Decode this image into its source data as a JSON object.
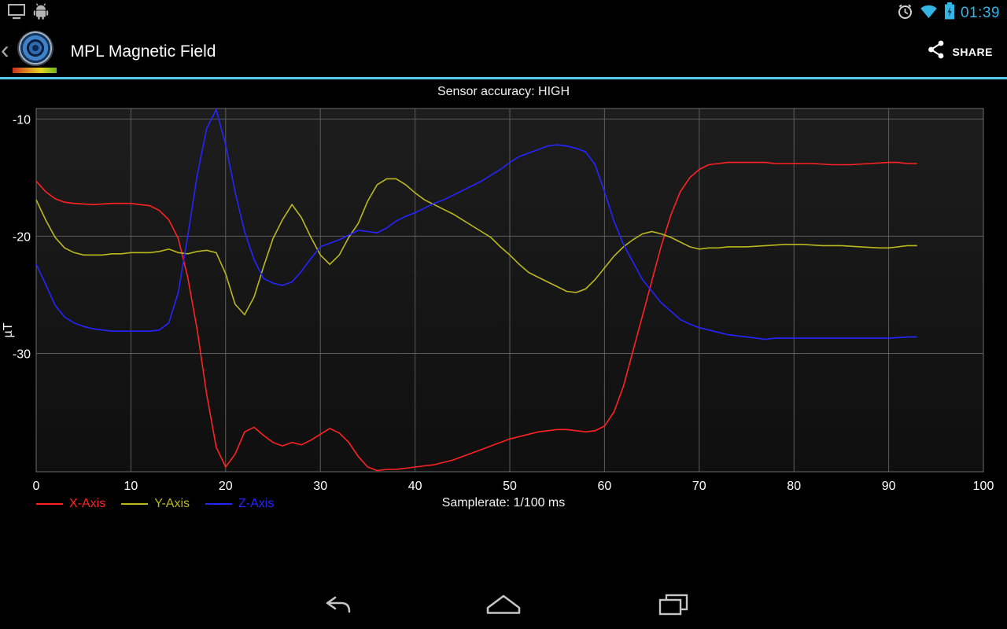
{
  "status_bar": {
    "time": "01:39",
    "accent_color": "#33B5E5",
    "left_icons": [
      "display-icon",
      "android-debug-icon"
    ],
    "right_icons": [
      "alarm-icon",
      "wifi-icon",
      "battery-charging-icon"
    ]
  },
  "action_bar": {
    "back_glyph": "‹",
    "title": "MPL Magnetic Field",
    "share_label": "SHARE",
    "divider_color": "#54c8ec"
  },
  "chart": {
    "accuracy_label": "Sensor accuracy: HIGH",
    "samplerate_label": "Samplerate: 1/100 ms"
  },
  "chart_data": {
    "type": "line",
    "title": "",
    "xlabel": "Samplerate: 1/100 ms",
    "ylabel": "µT",
    "xlim": [
      0,
      100
    ],
    "ylim": [
      -40.1,
      -9.1
    ],
    "x_ticks": [
      0,
      10,
      20,
      30,
      40,
      50,
      60,
      70,
      80,
      90,
      100
    ],
    "y_ticks": [
      -10,
      -20,
      -30
    ],
    "grid": true,
    "legend_position": "bottom-left",
    "series": [
      {
        "name": "X-Axis",
        "color": "#ff2222",
        "points": [
          [
            0,
            -15.3
          ],
          [
            1,
            -16.2
          ],
          [
            2,
            -16.8
          ],
          [
            3,
            -17.1
          ],
          [
            4,
            -17.2
          ],
          [
            6,
            -17.3
          ],
          [
            8,
            -17.2
          ],
          [
            10,
            -17.2
          ],
          [
            12,
            -17.4
          ],
          [
            13,
            -17.8
          ],
          [
            14,
            -18.6
          ],
          [
            15,
            -20.2
          ],
          [
            16,
            -23.5
          ],
          [
            17,
            -28
          ],
          [
            18,
            -33.5
          ],
          [
            19,
            -38
          ],
          [
            20,
            -39.7
          ],
          [
            21,
            -38.6
          ],
          [
            22,
            -36.7
          ],
          [
            23,
            -36.3
          ],
          [
            24,
            -37
          ],
          [
            25,
            -37.6
          ],
          [
            26,
            -37.9
          ],
          [
            27,
            -37.6
          ],
          [
            28,
            -37.8
          ],
          [
            29,
            -37.4
          ],
          [
            30,
            -36.9
          ],
          [
            31,
            -36.4
          ],
          [
            32,
            -36.8
          ],
          [
            33,
            -37.6
          ],
          [
            34,
            -38.8
          ],
          [
            35,
            -39.7
          ],
          [
            36,
            -40
          ],
          [
            37,
            -39.9
          ],
          [
            38,
            -39.9
          ],
          [
            39,
            -39.8
          ],
          [
            40,
            -39.7
          ],
          [
            41,
            -39.6
          ],
          [
            42,
            -39.5
          ],
          [
            43,
            -39.3
          ],
          [
            44,
            -39.1
          ],
          [
            45,
            -38.8
          ],
          [
            46,
            -38.5
          ],
          [
            47,
            -38.2
          ],
          [
            48,
            -37.9
          ],
          [
            49,
            -37.6
          ],
          [
            50,
            -37.3
          ],
          [
            51,
            -37.1
          ],
          [
            52,
            -36.9
          ],
          [
            53,
            -36.7
          ],
          [
            54,
            -36.6
          ],
          [
            55,
            -36.5
          ],
          [
            56,
            -36.5
          ],
          [
            57,
            -36.6
          ],
          [
            58,
            -36.7
          ],
          [
            59,
            -36.6
          ],
          [
            60,
            -36.2
          ],
          [
            61,
            -35
          ],
          [
            62,
            -32.8
          ],
          [
            63,
            -29.8
          ],
          [
            64,
            -26.8
          ],
          [
            65,
            -23.8
          ],
          [
            66,
            -20.8
          ],
          [
            67,
            -18.2
          ],
          [
            68,
            -16.2
          ],
          [
            69,
            -15
          ],
          [
            70,
            -14.3
          ],
          [
            71,
            -13.9
          ],
          [
            72,
            -13.8
          ],
          [
            73,
            -13.7
          ],
          [
            74,
            -13.7
          ],
          [
            75,
            -13.7
          ],
          [
            76,
            -13.7
          ],
          [
            77,
            -13.7
          ],
          [
            78,
            -13.8
          ],
          [
            80,
            -13.8
          ],
          [
            82,
            -13.8
          ],
          [
            84,
            -13.9
          ],
          [
            86,
            -13.9
          ],
          [
            88,
            -13.8
          ],
          [
            90,
            -13.7
          ],
          [
            91,
            -13.7
          ],
          [
            92,
            -13.8
          ],
          [
            93,
            -13.8
          ]
        ]
      },
      {
        "name": "Y-Axis",
        "color": "#b9b91e",
        "points": [
          [
            0,
            -16.9
          ],
          [
            1,
            -18.6
          ],
          [
            2,
            -20.1
          ],
          [
            3,
            -21
          ],
          [
            4,
            -21.4
          ],
          [
            5,
            -21.6
          ],
          [
            6,
            -21.6
          ],
          [
            7,
            -21.6
          ],
          [
            8,
            -21.5
          ],
          [
            9,
            -21.5
          ],
          [
            10,
            -21.4
          ],
          [
            11,
            -21.4
          ],
          [
            12,
            -21.4
          ],
          [
            13,
            -21.3
          ],
          [
            14,
            -21.1
          ],
          [
            15,
            -21.4
          ],
          [
            16,
            -21.5
          ],
          [
            17,
            -21.3
          ],
          [
            18,
            -21.2
          ],
          [
            19,
            -21.4
          ],
          [
            20,
            -23.2
          ],
          [
            21,
            -25.8
          ],
          [
            22,
            -26.7
          ],
          [
            23,
            -25.2
          ],
          [
            24,
            -22.6
          ],
          [
            25,
            -20.2
          ],
          [
            26,
            -18.6
          ],
          [
            27,
            -17.3
          ],
          [
            28,
            -18.4
          ],
          [
            29,
            -20.1
          ],
          [
            30,
            -21.6
          ],
          [
            31,
            -22.4
          ],
          [
            32,
            -21.6
          ],
          [
            33,
            -20.1
          ],
          [
            34,
            -18.9
          ],
          [
            35,
            -17
          ],
          [
            36,
            -15.6
          ],
          [
            37,
            -15.1
          ],
          [
            38,
            -15.1
          ],
          [
            39,
            -15.6
          ],
          [
            40,
            -16.3
          ],
          [
            41,
            -16.9
          ],
          [
            42,
            -17.3
          ],
          [
            43,
            -17.7
          ],
          [
            44,
            -18.1
          ],
          [
            45,
            -18.6
          ],
          [
            46,
            -19.1
          ],
          [
            47,
            -19.6
          ],
          [
            48,
            -20.1
          ],
          [
            49,
            -20.9
          ],
          [
            50,
            -21.6
          ],
          [
            51,
            -22.4
          ],
          [
            52,
            -23.1
          ],
          [
            53,
            -23.5
          ],
          [
            54,
            -23.9
          ],
          [
            55,
            -24.3
          ],
          [
            56,
            -24.7
          ],
          [
            57,
            -24.8
          ],
          [
            58,
            -24.5
          ],
          [
            59,
            -23.7
          ],
          [
            60,
            -22.7
          ],
          [
            61,
            -21.7
          ],
          [
            62,
            -20.9
          ],
          [
            63,
            -20.3
          ],
          [
            64,
            -19.8
          ],
          [
            65,
            -19.6
          ],
          [
            66,
            -19.8
          ],
          [
            67,
            -20.1
          ],
          [
            68,
            -20.5
          ],
          [
            69,
            -20.9
          ],
          [
            70,
            -21.1
          ],
          [
            71,
            -21
          ],
          [
            72,
            -21
          ],
          [
            73,
            -20.9
          ],
          [
            75,
            -20.9
          ],
          [
            77,
            -20.8
          ],
          [
            79,
            -20.7
          ],
          [
            81,
            -20.7
          ],
          [
            83,
            -20.8
          ],
          [
            85,
            -20.8
          ],
          [
            87,
            -20.9
          ],
          [
            89,
            -21
          ],
          [
            90,
            -21
          ],
          [
            91,
            -20.9
          ],
          [
            92,
            -20.8
          ],
          [
            93,
            -20.8
          ]
        ]
      },
      {
        "name": "Z-Axis",
        "color": "#2525ff",
        "points": [
          [
            0,
            -22.4
          ],
          [
            1,
            -24.1
          ],
          [
            2,
            -25.9
          ],
          [
            3,
            -26.9
          ],
          [
            4,
            -27.4
          ],
          [
            5,
            -27.7
          ],
          [
            6,
            -27.9
          ],
          [
            7,
            -28
          ],
          [
            8,
            -28.1
          ],
          [
            9,
            -28.1
          ],
          [
            10,
            -28.1
          ],
          [
            11,
            -28.1
          ],
          [
            12,
            -28.1
          ],
          [
            13,
            -28
          ],
          [
            14,
            -27.4
          ],
          [
            15,
            -24.8
          ],
          [
            16,
            -20
          ],
          [
            17,
            -14.8
          ],
          [
            18,
            -10.8
          ],
          [
            19,
            -9.2
          ],
          [
            20,
            -12.2
          ],
          [
            21,
            -16.2
          ],
          [
            22,
            -19.6
          ],
          [
            23,
            -22
          ],
          [
            24,
            -23.6
          ],
          [
            25,
            -24
          ],
          [
            26,
            -24.2
          ],
          [
            27,
            -23.9
          ],
          [
            28,
            -23
          ],
          [
            29,
            -21.9
          ],
          [
            30,
            -20.9
          ],
          [
            31,
            -20.6
          ],
          [
            32,
            -20.3
          ],
          [
            33,
            -19.9
          ],
          [
            34,
            -19.5
          ],
          [
            35,
            -19.6
          ],
          [
            36,
            -19.7
          ],
          [
            37,
            -19.3
          ],
          [
            38,
            -18.7
          ],
          [
            39,
            -18.3
          ],
          [
            40,
            -18
          ],
          [
            41,
            -17.6
          ],
          [
            42,
            -17.2
          ],
          [
            43,
            -16.9
          ],
          [
            44,
            -16.5
          ],
          [
            45,
            -16.1
          ],
          [
            46,
            -15.7
          ],
          [
            47,
            -15.3
          ],
          [
            48,
            -14.8
          ],
          [
            49,
            -14.3
          ],
          [
            50,
            -13.7
          ],
          [
            51,
            -13.2
          ],
          [
            52,
            -12.9
          ],
          [
            53,
            -12.6
          ],
          [
            54,
            -12.3
          ],
          [
            55,
            -12.2
          ],
          [
            56,
            -12.3
          ],
          [
            57,
            -12.5
          ],
          [
            58,
            -12.8
          ],
          [
            59,
            -13.9
          ],
          [
            60,
            -16.2
          ],
          [
            61,
            -18.7
          ],
          [
            62,
            -20.7
          ],
          [
            63,
            -22.2
          ],
          [
            64,
            -23.7
          ],
          [
            65,
            -24.7
          ],
          [
            66,
            -25.7
          ],
          [
            67,
            -26.4
          ],
          [
            68,
            -27.1
          ],
          [
            69,
            -27.5
          ],
          [
            70,
            -27.8
          ],
          [
            71,
            -28
          ],
          [
            72,
            -28.2
          ],
          [
            73,
            -28.4
          ],
          [
            74,
            -28.5
          ],
          [
            75,
            -28.6
          ],
          [
            76,
            -28.7
          ],
          [
            77,
            -28.8
          ],
          [
            78,
            -28.7
          ],
          [
            80,
            -28.7
          ],
          [
            82,
            -28.7
          ],
          [
            84,
            -28.7
          ],
          [
            86,
            -28.7
          ],
          [
            88,
            -28.7
          ],
          [
            90,
            -28.7
          ],
          [
            92,
            -28.6
          ],
          [
            93,
            -28.6
          ]
        ]
      }
    ]
  },
  "nav_bar": {
    "icons": [
      "back-nav-icon",
      "home-nav-icon",
      "recents-nav-icon"
    ]
  }
}
